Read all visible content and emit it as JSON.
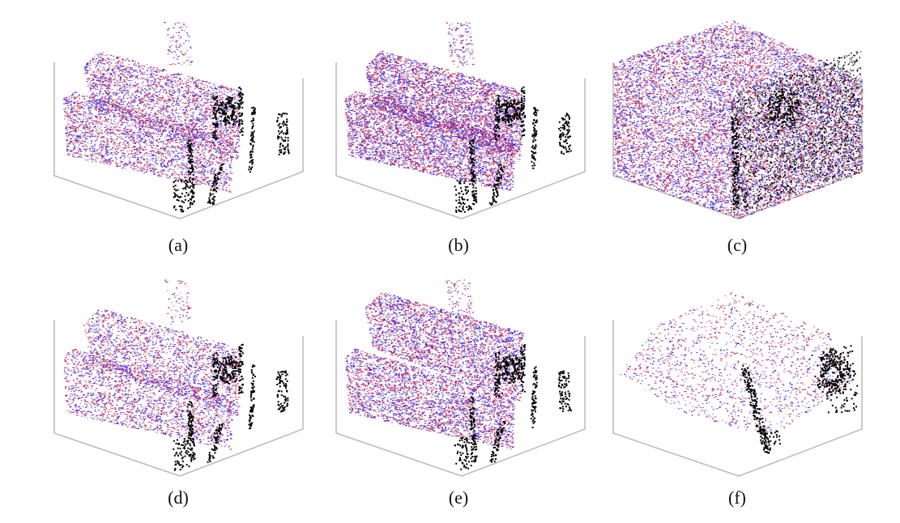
{
  "figure": {
    "panels": [
      {
        "id": "a",
        "caption": "(a)",
        "variant": "two-slabs",
        "density": 1.0,
        "black_objects": "full"
      },
      {
        "id": "b",
        "caption": "(b)",
        "variant": "two-slabs",
        "density": 1.5,
        "black_objects": "full"
      },
      {
        "id": "c",
        "caption": "(c)",
        "variant": "full-cube",
        "density": 3.0,
        "black_objects": "dense-face"
      },
      {
        "id": "d",
        "caption": "(d)",
        "variant": "two-slabs",
        "density": 0.8,
        "black_objects": "full"
      },
      {
        "id": "e",
        "caption": "(e)",
        "variant": "two-slabs-offset",
        "density": 1.2,
        "black_objects": "full"
      },
      {
        "id": "f",
        "caption": "(f)",
        "variant": "sparse-plane",
        "density": 0.5,
        "black_objects": "two-objects"
      }
    ],
    "colors": {
      "axis": "#bdbdbd",
      "red": "#d8203a",
      "blue": "#2a2ae0",
      "purple": "#7a2fb0",
      "black": "#000000"
    }
  }
}
